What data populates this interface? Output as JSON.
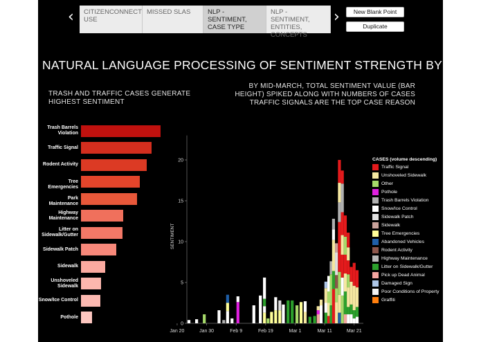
{
  "story_nav": {
    "tabs": [
      {
        "label": "CITIZENCONNECT USE",
        "active": false
      },
      {
        "label": "MISSED SLAs",
        "active": false
      },
      {
        "label": "NLP - SENTIMENT, CASE TYPE",
        "active": true
      },
      {
        "label": "NLP - SENTIMENT, ENTITIES, CONCEPTS",
        "active": false
      }
    ],
    "new_blank_point_label": "New Blank Point",
    "duplicate_label": "Duplicate",
    "prev_icon": "chevron-left-icon",
    "next_icon": "chevron-right-icon"
  },
  "page": {
    "title": "NATURAL LANGUAGE PROCESSING OF SENTIMENT STRENGTH BY CA..",
    "left_subtitle_lines": [
      "TRASH AND TRAFFIC CASES GENERATE",
      "HIGHEST SENTIMENT"
    ],
    "right_subtitle_lines": [
      "BY MID-MARCH, TOTAL SENTIMENT VALUE (BAR",
      "HEIGHT) SPIKED ALONG WITH NUMBERS OF CASES",
      "TRAFFIC SIGNALS ARE THE TOP CASE REASON"
    ]
  },
  "chart_data": [
    {
      "type": "bar",
      "orientation": "horizontal",
      "categories": [
        {
          "lines": [
            "Trash Barrels",
            "Violation"
          ]
        },
        {
          "lines": [
            "Traffic Signal"
          ]
        },
        {
          "lines": [
            "Rodent Activity"
          ]
        },
        {
          "lines": [
            "Tree Emergencies"
          ]
        },
        {
          "lines": [
            "Park Maintenance"
          ]
        },
        {
          "lines": [
            "Highway",
            "Maintenance"
          ]
        },
        {
          "lines": [
            "Litter on",
            "Sidewalk/Gutter"
          ]
        },
        {
          "lines": [
            "Sidewalk Patch"
          ]
        },
        {
          "lines": [
            "Sidewalk"
          ]
        },
        {
          "lines": [
            "Unshoveled",
            "Sidewalk"
          ]
        },
        {
          "lines": [
            "Snow/Ice Control"
          ]
        },
        {
          "lines": [
            "Pothole"
          ]
        }
      ],
      "values": [
        100,
        89,
        83,
        74,
        70,
        53,
        52,
        44,
        30,
        25,
        24,
        14
      ],
      "colors": [
        "#c0110e",
        "#d42e1e",
        "#dc3a24",
        "#e4452b",
        "#e8583a",
        "#f0705c",
        "#f37867",
        "#f7887a",
        "#fbaaa0",
        "#fcb7ae",
        "#fcb9b1",
        "#fdc7c0"
      ]
    },
    {
      "type": "bar",
      "stacked": true,
      "ylabel": "SENTIMENT",
      "yticks": [
        0,
        5,
        10,
        15,
        20
      ],
      "ylim": [
        0,
        23
      ],
      "xticks": [
        "Jan 20",
        "Jan 30",
        "Feb 9",
        "Feb 19",
        "Mar 1",
        "Mar 11",
        "Mar 21"
      ],
      "legend_title": "CASES (volume descending)",
      "legend": [
        {
          "name": "Traffic Signal",
          "color": "#e41a1c"
        },
        {
          "name": "Unshoveled Sidewalk",
          "color": "#f5e7a0"
        },
        {
          "name": "Other",
          "color": "#a6d96a"
        },
        {
          "name": "Pothole",
          "color": "#e020e0"
        },
        {
          "name": "Trash Barrels Violation",
          "color": "#b0b0b0"
        },
        {
          "name": "Snow/Ice Control",
          "color": "#ffffff"
        },
        {
          "name": "Sidewalk Patch",
          "color": "#e0e0e0"
        },
        {
          "name": "Sidewalk",
          "color": "#c9a29b"
        },
        {
          "name": "Tree Emergencies",
          "color": "#ffff99"
        },
        {
          "name": "Abandoned Vehicles",
          "color": "#1f5fa8"
        },
        {
          "name": "Rodent Activity",
          "color": "#8c564b"
        },
        {
          "name": "Highway Maintenance",
          "color": "#b8b8b8"
        },
        {
          "name": "Litter on Sidewalk/Gutter",
          "color": "#2ca02c"
        },
        {
          "name": "Pick up Dead Animal",
          "color": "#f4a6a0"
        },
        {
          "name": "Damaged Sign",
          "color": "#aec7e8"
        },
        {
          "name": "Poor Conditions of Property",
          "color": "#f2f2f2"
        },
        {
          "name": "Graffiti",
          "color": "#ff7f0e"
        }
      ],
      "days": [
        {
          "x": 0.0,
          "segments": [
            [
              "#ffffff",
              0.4
            ]
          ]
        },
        {
          "x": 2.6,
          "segments": [
            [
              "#ffffff",
              0.5
            ]
          ]
        },
        {
          "x": 5.2,
          "segments": [
            [
              "#a6d96a",
              1.1
            ]
          ]
        },
        {
          "x": 10.2,
          "segments": [
            [
              "#ffffff",
              1.6
            ]
          ]
        },
        {
          "x": 11.8,
          "segments": [
            [
              "#b0b0b0",
              0.4
            ]
          ]
        },
        {
          "x": 13.1,
          "segments": [
            [
              "#ffffff",
              1.5
            ],
            [
              "#ffff99",
              1.0
            ],
            [
              "#1f5fa8",
              1.0
            ]
          ]
        },
        {
          "x": 14.6,
          "segments": [
            [
              "#ffffff",
              0.6
            ]
          ]
        },
        {
          "x": 16.6,
          "segments": [
            [
              "#e020e0",
              2.6
            ],
            [
              "#ffffff",
              0.7
            ]
          ]
        },
        {
          "x": 22.0,
          "segments": [
            [
              "#ffffff",
              2.2
            ]
          ]
        },
        {
          "x": 24.2,
          "segments": [
            [
              "#ffffff",
              3.4
            ]
          ]
        },
        {
          "x": 25.6,
          "segments": [
            [
              "#ffff99",
              1.3
            ],
            [
              "#ffffff",
              0.8
            ],
            [
              "#2ca02c",
              0.9
            ],
            [
              "#ffffff",
              2.6
            ]
          ]
        },
        {
          "x": 26.8,
          "segments": [
            [
              "#a6d96a",
              0.6
            ]
          ]
        },
        {
          "x": 28.0,
          "segments": [
            [
              "#ffff99",
              1.4
            ]
          ]
        },
        {
          "x": 29.4,
          "segments": [
            [
              "#ffff99",
              1.6
            ],
            [
              "#ffffff",
              1.6
            ]
          ]
        },
        {
          "x": 30.8,
          "segments": [
            [
              "#ffff99",
              1.6
            ],
            [
              "#e0e0e0",
              1.2
            ]
          ]
        },
        {
          "x": 32.0,
          "segments": [
            [
              "#ffffff",
              2.3
            ]
          ]
        },
        {
          "x": 33.6,
          "segments": [
            [
              "#2ca02c",
              2.8
            ]
          ]
        },
        {
          "x": 35.0,
          "segments": [
            [
              "#2ca02c",
              2.8
            ]
          ]
        },
        {
          "x": 36.6,
          "segments": [
            [
              "#a6d96a",
              2.2
            ]
          ]
        },
        {
          "x": 38.0,
          "segments": [
            [
              "#ffff99",
              2.6
            ]
          ]
        },
        {
          "x": 39.4,
          "segments": [
            [
              "#f5e7a0",
              1.4
            ],
            [
              "#ffffff",
              1.3
            ]
          ]
        },
        {
          "x": 41.0,
          "segments": [
            [
              "#2ca02c",
              0.8
            ]
          ]
        },
        {
          "x": 42.6,
          "segments": [
            [
              "#2ca02c",
              0.9
            ]
          ]
        },
        {
          "x": 43.8,
          "segments": [
            [
              "#f4a6a0",
              1.1
            ],
            [
              "#e020e0",
              0.5
            ],
            [
              "#f5e7a0",
              0.5
            ]
          ]
        },
        {
          "x": 44.8,
          "segments": [
            [
              "#ffffff",
              2.2
            ],
            [
              "#f5e7a0",
              0.7
            ]
          ]
        },
        {
          "x": 46.4,
          "segments": [
            [
              "#2ca02c",
              1.3
            ],
            [
              "#ffffff",
              1.2
            ],
            [
              "#f5e7a0",
              1.8
            ],
            [
              "#aec7e8",
              0.8
            ]
          ]
        },
        {
          "x": 47.4,
          "segments": [
            [
              "#e41a1c",
              0.9
            ],
            [
              "#f5e7a0",
              1.6
            ],
            [
              "#a6d96a",
              1.4
            ],
            [
              "#ffffff",
              1.9
            ]
          ]
        },
        {
          "x": 48.2,
          "segments": [
            [
              "#2ca02c",
              2.2
            ],
            [
              "#a6d96a",
              3.8
            ],
            [
              "#b0b0b0",
              1.6
            ]
          ]
        },
        {
          "x": 49.0,
          "segments": [
            [
              "#e41a1c",
              4.2
            ],
            [
              "#2ca02c",
              2.2
            ],
            [
              "#f5e7a0",
              3.8
            ],
            [
              "#ffffff",
              1.3
            ],
            [
              "#b0b0b0",
              1.3
            ]
          ]
        },
        {
          "x": 50.0,
          "segments": [
            [
              "#f5e7a0",
              2.6
            ],
            [
              "#a6d96a",
              1.7
            ],
            [
              "#8c564b",
              1.6
            ],
            [
              "#e0e0e0",
              2.8
            ],
            [
              "#c9a29b",
              1.1
            ]
          ]
        },
        {
          "x": 51.0,
          "segments": [
            [
              "#1f5fa8",
              1.3
            ],
            [
              "#f5e7a0",
              2.2
            ],
            [
              "#a6d96a",
              2.8
            ],
            [
              "#e41a1c",
              6.1
            ],
            [
              "#b0b0b0",
              2.4
            ],
            [
              "#f5e7a0",
              2.4
            ],
            [
              "#e41a1c",
              2.8
            ]
          ]
        },
        {
          "x": 52.0,
          "segments": [
            [
              "#a6d96a",
              3.4
            ],
            [
              "#ffffff",
              2.2
            ],
            [
              "#e41a1c",
              2.8
            ],
            [
              "#f5e7a0",
              2.4
            ],
            [
              "#e41a1c",
              2.8
            ],
            [
              "#b0b0b0",
              3.5
            ],
            [
              "#e41a1c",
              1.6
            ]
          ]
        },
        {
          "x": 53.0,
          "segments": [
            [
              "#f4a6a0",
              1.1
            ],
            [
              "#2ca02c",
              2.8
            ],
            [
              "#f5e7a0",
              2.2
            ],
            [
              "#e41a1c",
              2.3
            ],
            [
              "#a6d96a",
              2.2
            ],
            [
              "#e41a1c",
              2.6
            ]
          ]
        },
        {
          "x": 54.0,
          "segments": [
            [
              "#ffffff",
              1.1
            ],
            [
              "#2ca02c",
              0.9
            ],
            [
              "#f5e7a0",
              2.4
            ],
            [
              "#a6d96a",
              1.6
            ],
            [
              "#e41a1c",
              1.7
            ],
            [
              "#f5e7a0",
              1.6
            ],
            [
              "#e41a1c",
              1.8
            ]
          ]
        },
        {
          "x": 55.0,
          "segments": [
            [
              "#ffffff",
              1.1
            ],
            [
              "#2ca02c",
              1.2
            ],
            [
              "#f5e7a0",
              2.8
            ],
            [
              "#e41a1c",
              1.8
            ]
          ]
        },
        {
          "x": 56.0,
          "segments": [
            [
              "#ffffff",
              0.6
            ],
            [
              "#2ca02c",
              1.0
            ],
            [
              "#f5e7a0",
              3.0
            ],
            [
              "#e41a1c",
              2.8
            ]
          ]
        },
        {
          "x": 57.0,
          "segments": [
            [
              "#ffffff",
              0.8
            ],
            [
              "#2ca02c",
              1.2
            ],
            [
              "#f5e7a0",
              2.4
            ],
            [
              "#e41a1c",
              2.1
            ]
          ]
        }
      ]
    }
  ]
}
